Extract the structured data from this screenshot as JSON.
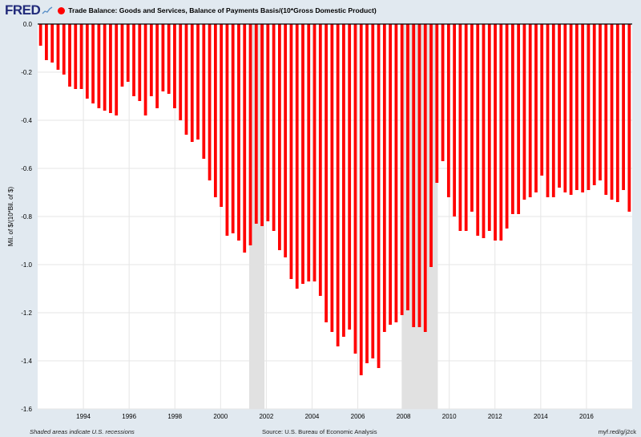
{
  "header": {
    "logo_text": "FRED",
    "logo_icon": "fred-line-chart-icon",
    "series_color": "#ff0000",
    "series_title": "Trade Balance: Goods and Services, Balance of Payments Basis/(10*Gross Domestic Product)"
  },
  "footer": {
    "recession_note": "Shaded areas indicate U.S. recessions",
    "source": "Source: U.S. Bureau of Economic Analysis",
    "link": "myf.red/g/j2ck"
  },
  "chart_data": {
    "type": "bar",
    "ylabel": "Mil. of $/(10*Bil. of $)",
    "ylim": [
      -1.6,
      0.0
    ],
    "ytick_labels": [
      "0.0",
      "-0.2",
      "-0.4",
      "-0.6",
      "-0.8",
      "-1.0",
      "-1.2",
      "-1.4",
      "-1.6"
    ],
    "yticks": [
      0.0,
      -0.2,
      -0.4,
      -0.6,
      -0.8,
      -1.0,
      -1.2,
      -1.4,
      -1.6
    ],
    "xticks": [
      1994,
      1996,
      1998,
      2000,
      2002,
      2004,
      2006,
      2008,
      2010,
      2012,
      2014,
      2016
    ],
    "xtick_labels": [
      "1994",
      "1996",
      "1998",
      "2000",
      "2002",
      "2004",
      "2006",
      "2008",
      "2010",
      "2012",
      "2014",
      "2016"
    ],
    "x_range": [
      1992.0,
      2018.0
    ],
    "bar_color": "#ff0000",
    "grid": true,
    "recessions": [
      [
        2001.25,
        2001.92
      ],
      [
        2007.92,
        2009.5
      ]
    ],
    "values": [
      -0.09,
      -0.15,
      -0.16,
      -0.19,
      -0.21,
      -0.26,
      -0.27,
      -0.27,
      -0.31,
      -0.33,
      -0.35,
      -0.36,
      -0.37,
      -0.38,
      -0.26,
      -0.24,
      -0.3,
      -0.32,
      -0.38,
      -0.3,
      -0.35,
      -0.28,
      -0.29,
      -0.35,
      -0.4,
      -0.46,
      -0.49,
      -0.48,
      -0.56,
      -0.65,
      -0.72,
      -0.76,
      -0.88,
      -0.87,
      -0.9,
      -0.95,
      -0.92,
      -0.83,
      -0.84,
      -0.82,
      -0.86,
      -0.94,
      -0.97,
      -1.06,
      -1.1,
      -1.08,
      -1.07,
      -1.07,
      -1.13,
      -1.24,
      -1.28,
      -1.34,
      -1.3,
      -1.27,
      -1.37,
      -1.46,
      -1.41,
      -1.39,
      -1.43,
      -1.28,
      -1.25,
      -1.24,
      -1.21,
      -1.19,
      -1.26,
      -1.26,
      -1.28,
      -1.01,
      -0.66,
      -0.57,
      -0.72,
      -0.8,
      -0.86,
      -0.86,
      -0.78,
      -0.88,
      -0.89,
      -0.86,
      -0.9,
      -0.9,
      -0.85,
      -0.79,
      -0.79,
      -0.73,
      -0.72,
      -0.7,
      -0.63,
      -0.72,
      -0.72,
      -0.68,
      -0.7,
      -0.71,
      -0.69,
      -0.7,
      -0.69,
      -0.67,
      -0.65,
      -0.71,
      -0.73,
      -0.74,
      -0.69,
      -0.78
    ]
  }
}
